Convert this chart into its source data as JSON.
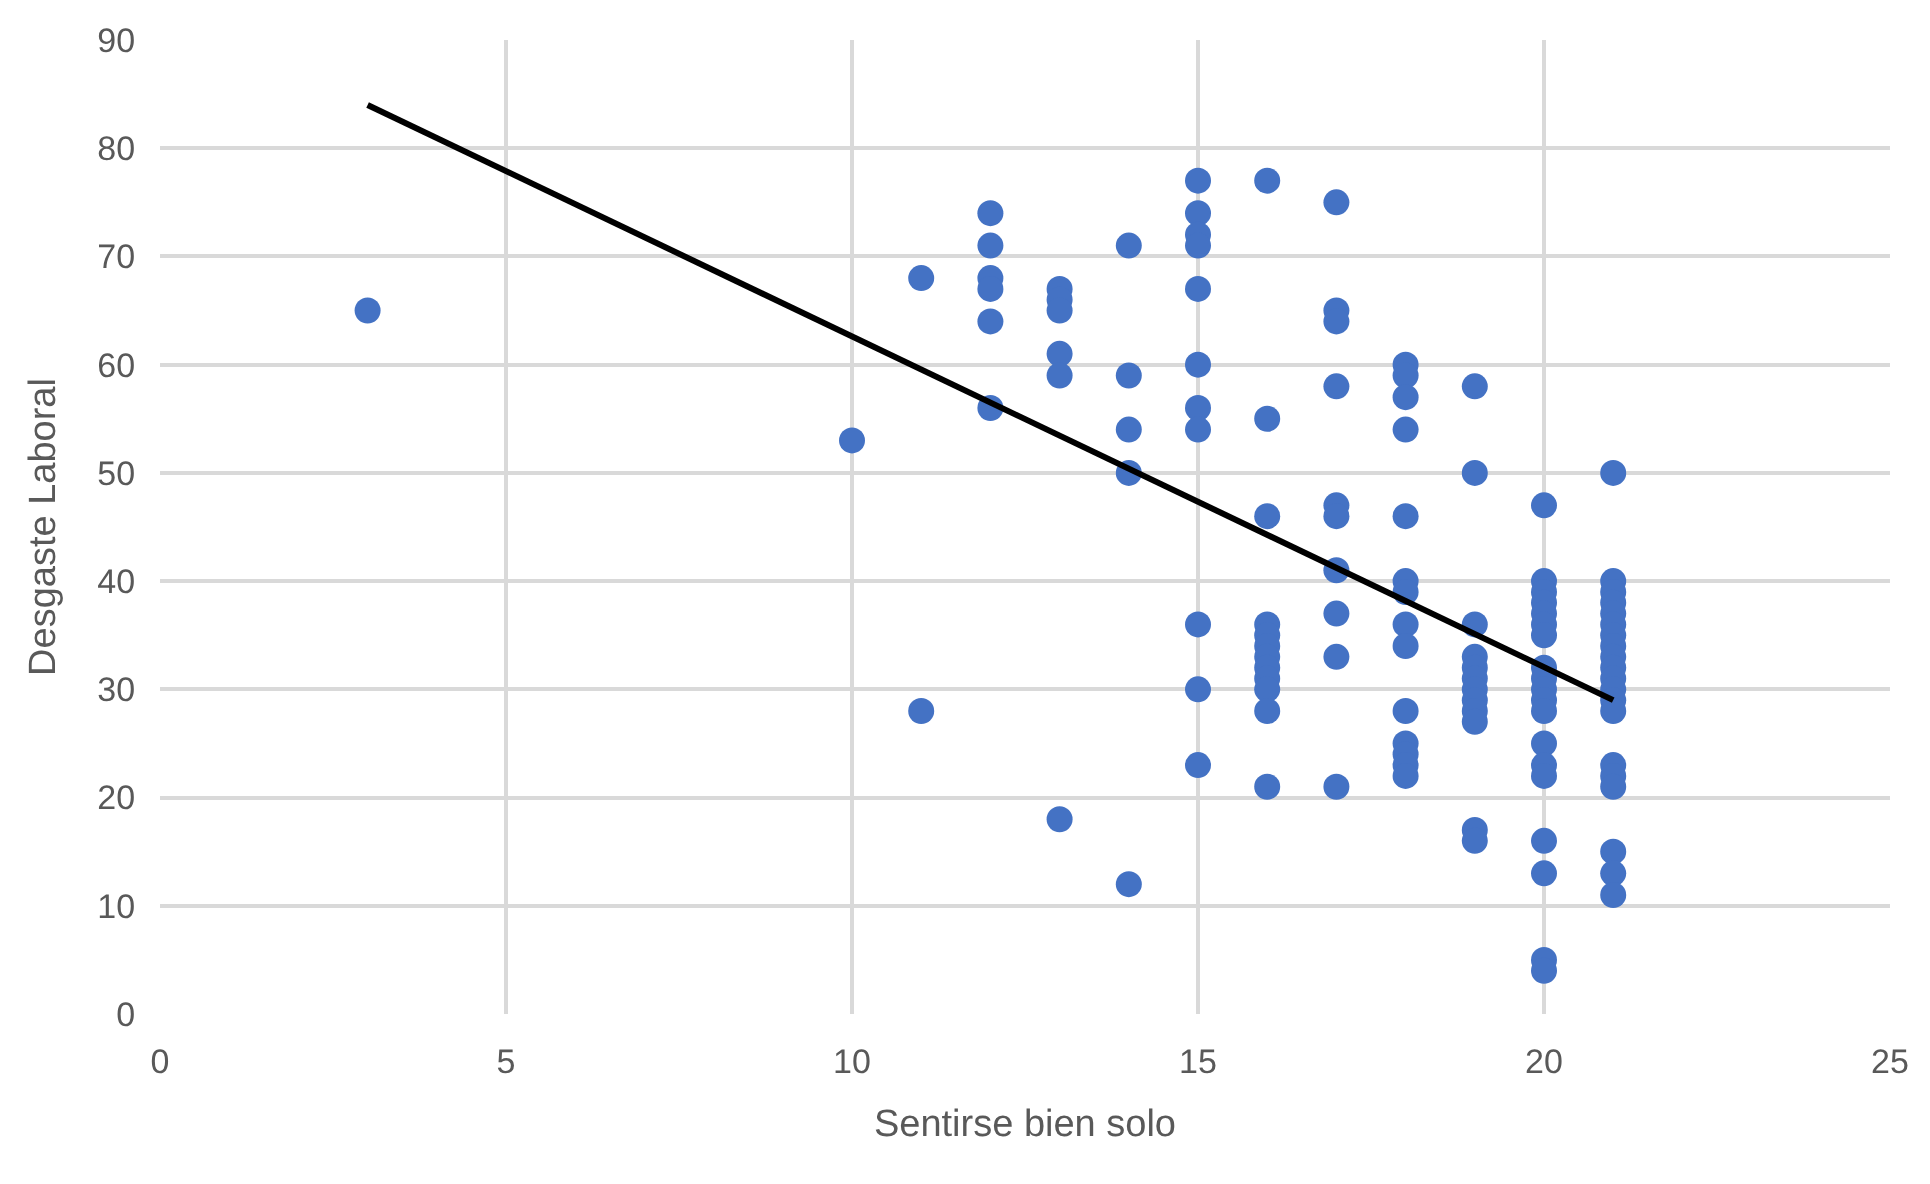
{
  "chart_data": {
    "type": "scatter",
    "xlabel": "Sentirse bien solo",
    "ylabel": "Desgaste Laboral",
    "xlim": [
      0,
      25
    ],
    "xticks": [
      0,
      5,
      10,
      15,
      20,
      25
    ],
    "ylim": [
      0,
      90
    ],
    "yticks": [
      0,
      10,
      20,
      30,
      40,
      50,
      60,
      70,
      80,
      90
    ],
    "grid": true,
    "legend": false,
    "marker": "circle",
    "series": [
      {
        "color": "#4472c4",
        "x": [
          3,
          10,
          11,
          11,
          12,
          12,
          12,
          12,
          12,
          12,
          13,
          13,
          13,
          13,
          13,
          13,
          14,
          14,
          14,
          14,
          14,
          15,
          15,
          15,
          15,
          15,
          15,
          15,
          15,
          15,
          15,
          15,
          16,
          16,
          16,
          16,
          16,
          16,
          16,
          16,
          16,
          16,
          16,
          16,
          17,
          17,
          17,
          17,
          17,
          17,
          17,
          17,
          17,
          17,
          18,
          18,
          18,
          18,
          18,
          18,
          18,
          18,
          18,
          18,
          18,
          18,
          18,
          18,
          19,
          19,
          19,
          19,
          19,
          19,
          19,
          19,
          19,
          19,
          19,
          19,
          20,
          20,
          20,
          20,
          20,
          20,
          20,
          20,
          20,
          20,
          20,
          20,
          20,
          20,
          20,
          20,
          20,
          20,
          20,
          21,
          21,
          21,
          21,
          21,
          21,
          21,
          21,
          21,
          21,
          21,
          21,
          21,
          21,
          21,
          21,
          21,
          21,
          21,
          21
        ],
        "values": [
          65,
          53,
          68,
          28,
          74,
          71,
          68,
          67,
          64,
          56,
          67,
          66,
          65,
          61,
          59,
          18,
          71,
          59,
          54,
          50,
          12,
          77,
          74,
          72,
          71,
          67,
          60,
          56,
          54,
          36,
          30,
          23,
          77,
          55,
          46,
          36,
          35,
          34,
          33,
          32,
          31,
          30,
          28,
          21,
          75,
          65,
          64,
          58,
          47,
          46,
          41,
          37,
          33,
          21,
          60,
          59,
          57,
          54,
          46,
          40,
          39,
          36,
          34,
          28,
          25,
          24,
          23,
          22,
          58,
          50,
          36,
          33,
          32,
          31,
          30,
          29,
          28,
          27,
          17,
          16,
          47,
          40,
          39,
          38,
          37,
          36,
          35,
          32,
          31,
          30,
          29,
          28,
          25,
          23,
          22,
          16,
          13,
          5,
          4,
          50,
          40,
          39,
          38,
          37,
          36,
          35,
          34,
          33,
          32,
          31,
          30,
          29,
          28,
          23,
          22,
          21,
          15,
          13,
          11
        ]
      },
      {
        "type": "line",
        "color": "#000000",
        "marker": "none",
        "x": [
          3,
          21
        ],
        "values": [
          84,
          29
        ]
      }
    ]
  }
}
